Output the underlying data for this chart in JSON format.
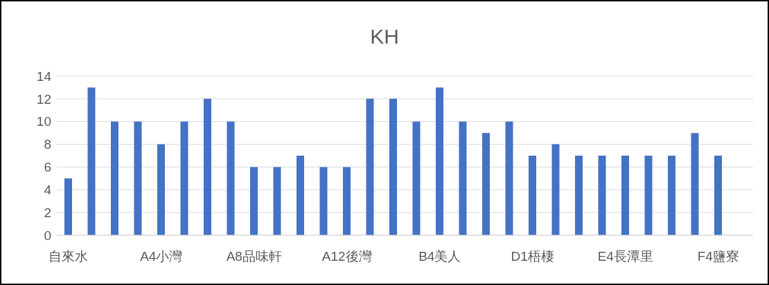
{
  "chart_data": {
    "type": "bar",
    "title": "KH",
    "categories": [
      "自來水",
      null,
      null,
      null,
      "A4小灣",
      null,
      null,
      null,
      "A8品味軒",
      null,
      null,
      null,
      "A12後灣",
      null,
      null,
      null,
      "B4美人",
      null,
      null,
      null,
      "D1梧棲",
      null,
      null,
      null,
      "E4長潭里",
      null,
      null,
      null,
      "F4鹽寮",
      null
    ],
    "values": [
      5,
      13,
      10,
      10,
      8,
      10,
      12,
      10,
      6,
      6,
      7,
      6,
      6,
      12,
      12,
      10,
      13,
      10,
      9,
      10,
      7,
      8,
      7,
      7,
      7,
      7,
      7,
      9,
      7,
      null
    ],
    "color": "#4472c4",
    "ylim": [
      0,
      14
    ],
    "yticks": [
      0,
      2,
      4,
      6,
      8,
      10,
      12,
      14
    ],
    "grid": "y",
    "legend": false
  }
}
